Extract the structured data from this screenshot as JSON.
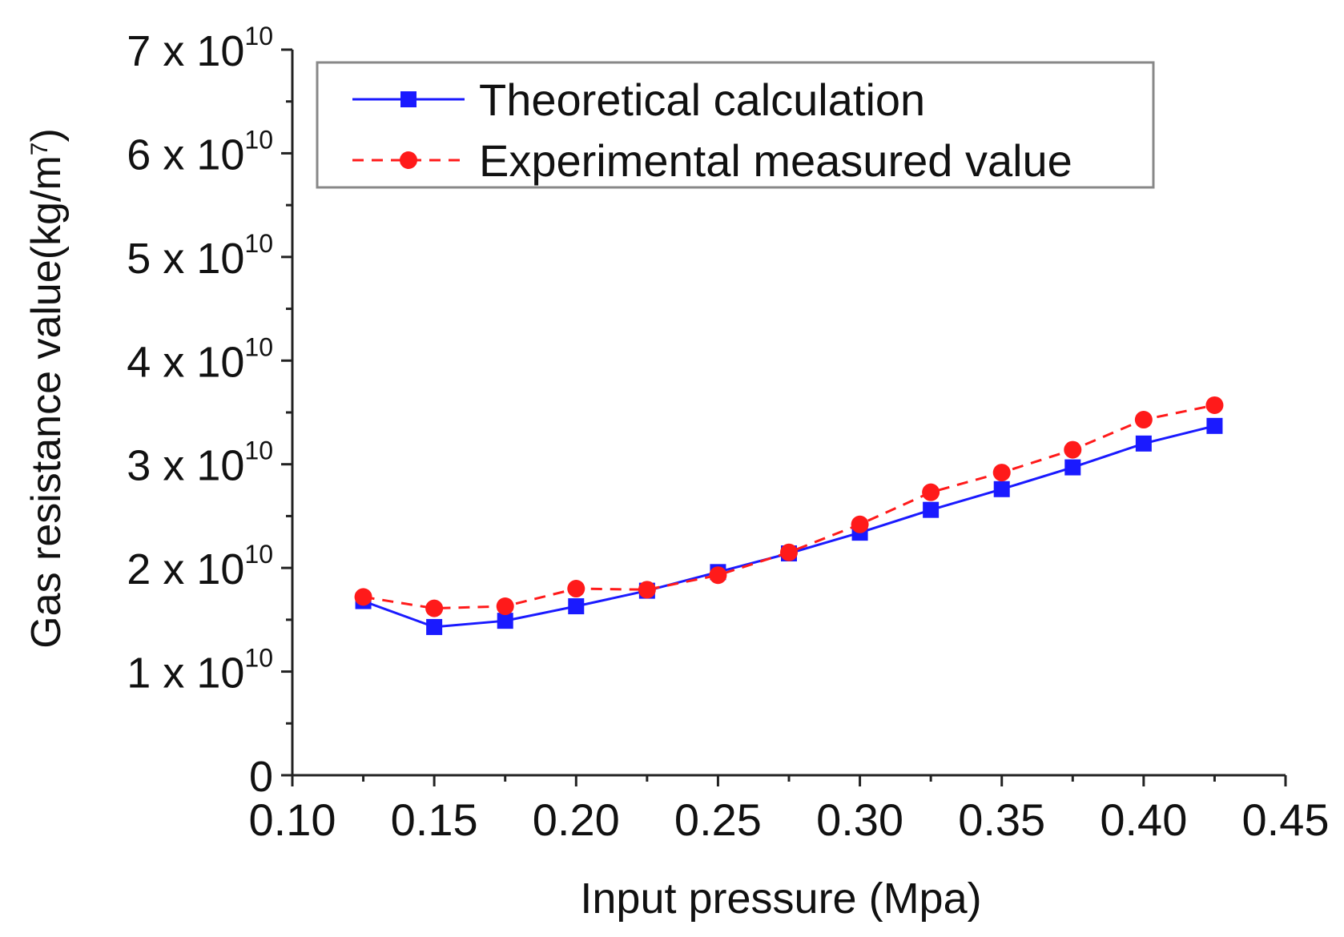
{
  "chart_data": {
    "type": "line",
    "title": "",
    "xlabel": "Input pressure (Mpa)",
    "ylabel": {
      "main": "Gas resistance value(kg/m",
      "superscript": "7",
      "close": ")"
    },
    "xlim": [
      0.1,
      0.45
    ],
    "ylim": [
      0,
      70000000000
    ],
    "x_ticks": [
      "0.10",
      "0.15",
      "0.20",
      "0.25",
      "0.30",
      "0.35",
      "0.40",
      "0.45"
    ],
    "x_tick_values": [
      0.1,
      0.15,
      0.2,
      0.25,
      0.3,
      0.35,
      0.4,
      0.45
    ],
    "y_ticks": [
      {
        "value": 0,
        "mantissa": "0",
        "exp": ""
      },
      {
        "value": 10000000000,
        "mantissa": "1 x 10",
        "exp": "10"
      },
      {
        "value": 20000000000,
        "mantissa": "2 x 10",
        "exp": "10"
      },
      {
        "value": 30000000000,
        "mantissa": "3 x 10",
        "exp": "10"
      },
      {
        "value": 40000000000,
        "mantissa": "4 x 10",
        "exp": "10"
      },
      {
        "value": 50000000000,
        "mantissa": "5 x 10",
        "exp": "10"
      },
      {
        "value": 60000000000,
        "mantissa": "6 x 10",
        "exp": "10"
      },
      {
        "value": 70000000000,
        "mantissa": "7 x 10",
        "exp": "10"
      }
    ],
    "grid": false,
    "legend_position": "top",
    "x": [
      0.125,
      0.15,
      0.175,
      0.2,
      0.225,
      0.25,
      0.275,
      0.3,
      0.325,
      0.35,
      0.375,
      0.4,
      0.425
    ],
    "series": [
      {
        "name": "Theoretical calculation",
        "color": "#1a1aff",
        "line_style": "solid",
        "marker": "square",
        "values": [
          16800000000,
          14300000000,
          14900000000,
          16300000000,
          17800000000,
          19600000000,
          21400000000,
          23400000000,
          25600000000,
          27600000000,
          29700000000,
          32000000000,
          33700000000
        ]
      },
      {
        "name": "Experimental measured value",
        "color": "#ff1a1a",
        "line_style": "dashed",
        "marker": "circle",
        "values": [
          17200000000,
          16100000000,
          16300000000,
          18000000000,
          17900000000,
          19300000000,
          21500000000,
          24200000000,
          27300000000,
          29200000000,
          31400000000,
          34300000000,
          35700000000
        ]
      }
    ]
  }
}
